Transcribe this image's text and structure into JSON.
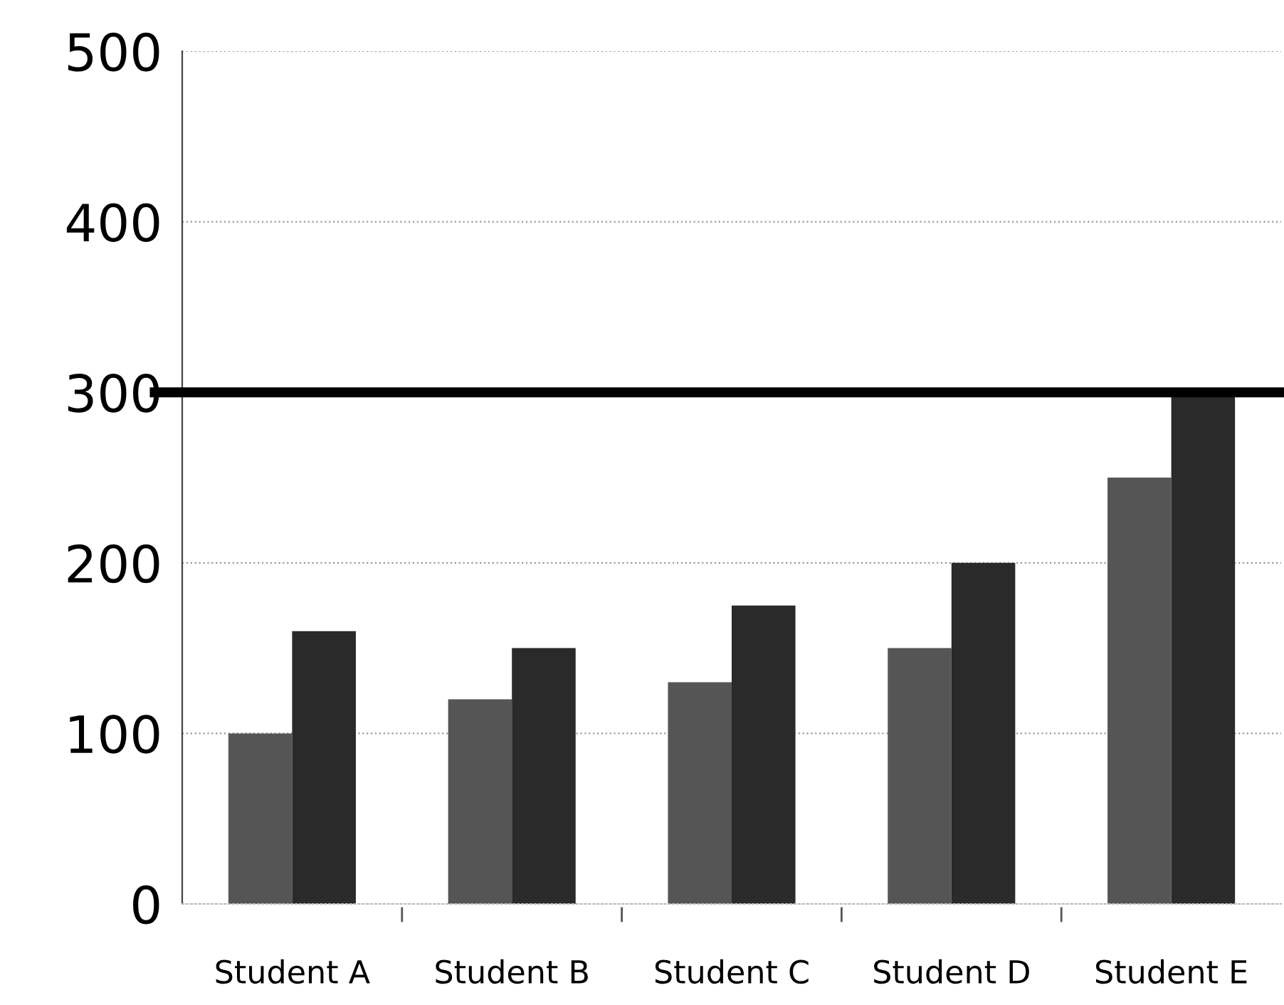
{
  "chart_data": {
    "type": "bar",
    "categories": [
      "Student A",
      "Student B",
      "Student C",
      "Student D",
      "Student E"
    ],
    "series": [
      {
        "color": "#555555",
        "values": [
          100,
          120,
          130,
          150,
          250
        ]
      },
      {
        "color": "#2a2a2a",
        "values": [
          160,
          150,
          175,
          200,
          300
        ]
      }
    ],
    "ylim": [
      0,
      500
    ],
    "yticks": [
      0,
      100,
      200,
      300,
      400,
      500
    ],
    "grid": "y",
    "ref_lines": [
      {
        "axis": "y",
        "value": 300,
        "color": "#000000"
      }
    ]
  }
}
